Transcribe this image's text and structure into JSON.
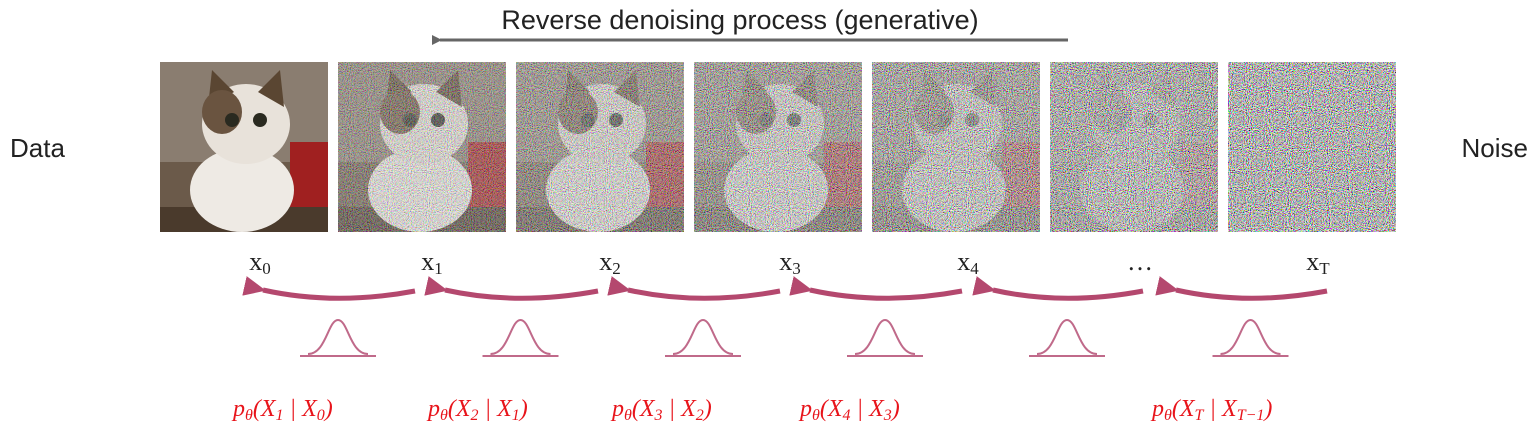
{
  "header": {
    "title": "Reverse denoising process (generative)"
  },
  "sides": {
    "left": "Data",
    "right": "Noise"
  },
  "steps": [
    [
      "x",
      "0"
    ],
    [
      "x",
      "1"
    ],
    [
      "x",
      "2"
    ],
    [
      "x",
      "3"
    ],
    [
      "x",
      "4"
    ],
    [
      "…",
      ""
    ],
    [
      "x",
      "T"
    ]
  ],
  "formulas": [
    [
      "p",
      "θ",
      "(X",
      "1",
      " | X",
      "0",
      ")"
    ],
    [
      "p",
      "θ",
      "(X",
      "2",
      " | X",
      "1",
      ")"
    ],
    [
      "p",
      "θ",
      "(X",
      "3",
      " | X",
      "2",
      ")"
    ],
    [
      "p",
      "θ",
      "(X",
      "4",
      " | X",
      "3",
      ")"
    ],
    [
      "p",
      "θ",
      "(X",
      "T",
      " | X",
      "T−1",
      ")"
    ]
  ]
}
